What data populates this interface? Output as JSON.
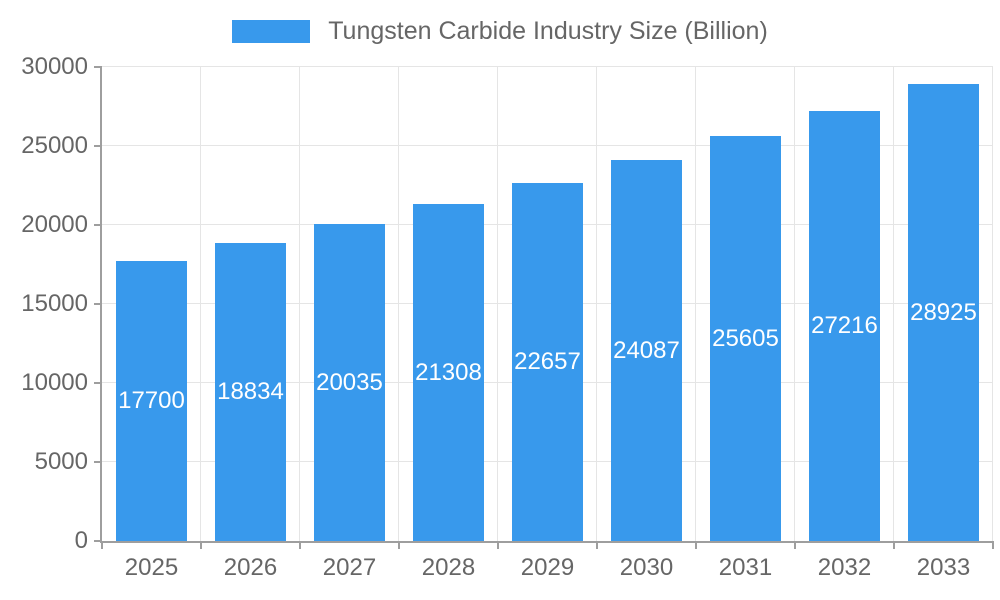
{
  "legend": {
    "label": "Tungsten Carbide Industry Size (Billion)",
    "swatch_color": "#3899ec"
  },
  "chart_data": {
    "type": "bar",
    "title": "Tungsten Carbide Industry Size (Billion)",
    "categories": [
      "2025",
      "2026",
      "2027",
      "2028",
      "2029",
      "2030",
      "2031",
      "2032",
      "2033"
    ],
    "values": [
      17700,
      18834,
      20035,
      21308,
      22657,
      24087,
      25605,
      27216,
      28925
    ],
    "value_labels": [
      "17700",
      "18834",
      "20035",
      "21308",
      "22657",
      "24087",
      "25605",
      "27216",
      "28925"
    ],
    "xlabel": "",
    "ylabel": "",
    "ylim": [
      0,
      30000
    ],
    "yticks": [
      0,
      5000,
      10000,
      15000,
      20000,
      25000,
      30000
    ],
    "ytick_labels": [
      "0",
      "5000",
      "10000",
      "15000",
      "20000",
      "25000",
      "30000"
    ],
    "grid": true,
    "legend_position": "top",
    "bar_color": "#3899ec",
    "value_label_color": "#ffffff",
    "axis_text_color": "#666666",
    "gridline_color": "#e5e5e5",
    "axis_line_color": "#9e9e9e",
    "background_color": "#ffffff"
  }
}
